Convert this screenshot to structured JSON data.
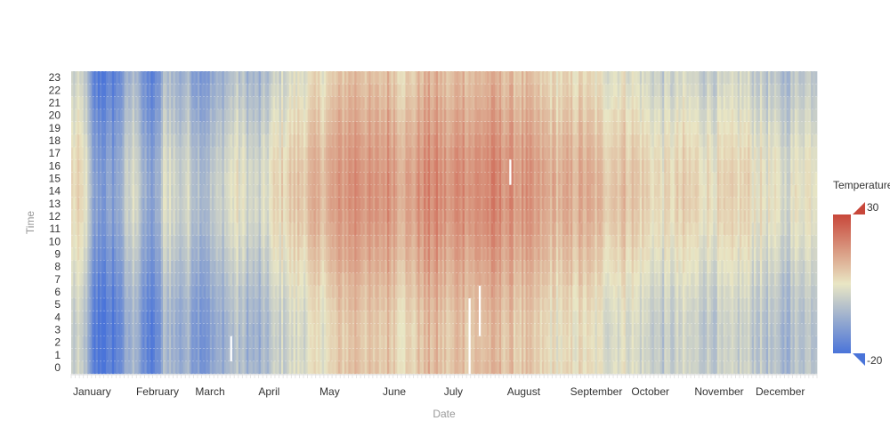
{
  "chart_data": {
    "type": "heatmap",
    "title": "",
    "xlabel": "Date",
    "ylabel": "Time",
    "x_tick_labels": [
      "January",
      "February",
      "March",
      "April",
      "May",
      "June",
      "July",
      "August",
      "September",
      "October",
      "November",
      "December"
    ],
    "y_tick_labels": [
      "0",
      "1",
      "2",
      "3",
      "4",
      "5",
      "6",
      "7",
      "8",
      "9",
      "10",
      "11",
      "12",
      "13",
      "14",
      "15",
      "16",
      "17",
      "18",
      "19",
      "20",
      "21",
      "22",
      "23"
    ],
    "days": 366,
    "hours": 24,
    "value_range": [
      -20,
      30
    ],
    "legend": {
      "title": "Temperature",
      "max_label": "30",
      "min_label": "-20",
      "placement": "right"
    },
    "color_scale": [
      "#4a74d9",
      "#e9e6c4",
      "#c8473a"
    ],
    "daily_profile": {
      "day_of_year": [
        0,
        6,
        10,
        15,
        18,
        22,
        28,
        32,
        35,
        38,
        42,
        45,
        48,
        52,
        56,
        60,
        65,
        72,
        80,
        86,
        92,
        100,
        110,
        118,
        126,
        132,
        140,
        148,
        156,
        160,
        166,
        172,
        178,
        186,
        190,
        196,
        204,
        212,
        222,
        230,
        240,
        250,
        262,
        270,
        280,
        290,
        300,
        310,
        320,
        330,
        340,
        350,
        358,
        365
      ],
      "base_temp": [
        3,
        2,
        -14,
        -15,
        -15,
        -13,
        -4,
        0,
        -12,
        -14,
        -13,
        -2,
        0,
        -5,
        -2,
        -6,
        -8,
        -5,
        1,
        -2,
        -4,
        3,
        6,
        8,
        10,
        13,
        16,
        12,
        15,
        12,
        11,
        15,
        16,
        12,
        17,
        14,
        16,
        15,
        13,
        11,
        9,
        10,
        7,
        8,
        5,
        2,
        4,
        3,
        2,
        4,
        1,
        -2,
        2,
        2
      ]
    },
    "diurnal_amplitude": 4,
    "notes_gaps": [
      {
        "day": 78,
        "hours": [
          1,
          2
        ]
      },
      {
        "day": 195,
        "hours": [
          0,
          1,
          2,
          3,
          4,
          5
        ]
      },
      {
        "day": 200,
        "hours": [
          3,
          4,
          5,
          6
        ]
      },
      {
        "day": 215,
        "hours": [
          15,
          16
        ]
      }
    ]
  }
}
